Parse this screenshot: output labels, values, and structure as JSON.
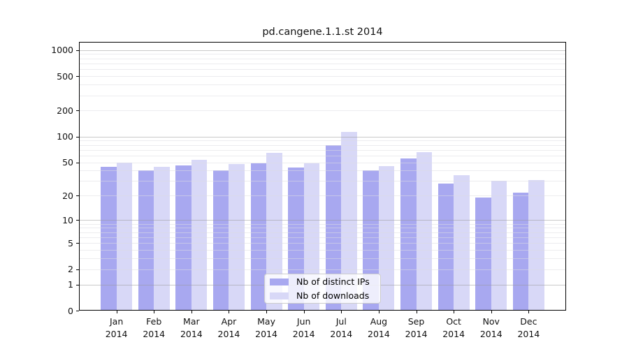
{
  "chart_data": {
    "type": "bar",
    "title": "pd.cangene.1.1.st 2014",
    "categories": [
      "Jan 2014",
      "Feb 2014",
      "Mar 2014",
      "Apr 2014",
      "May 2014",
      "Jun 2014",
      "Jul 2014",
      "Aug 2014",
      "Sep 2014",
      "Oct 2014",
      "Nov 2014",
      "Dec 2014"
    ],
    "series": [
      {
        "name": "Nb of distinct IPs",
        "color": "#a8a8f0",
        "values": [
          44,
          40,
          46,
          40,
          49,
          43,
          79,
          40,
          55,
          28,
          19,
          22
        ]
      },
      {
        "name": "Nb of downloads",
        "color": "#d8d8f7",
        "values": [
          50,
          44,
          53,
          48,
          65,
          49,
          113,
          45,
          66,
          35,
          30,
          31
        ]
      }
    ],
    "yscale": "log1p",
    "ylim": [
      0,
      1240
    ],
    "yticks": [
      0,
      1,
      2,
      5,
      10,
      20,
      50,
      100,
      200,
      500,
      1000
    ],
    "grid_major": [
      1,
      10,
      100,
      1000
    ],
    "grid_minor_multiples_per_decade": [
      2,
      3,
      4,
      5,
      6,
      7,
      8,
      9
    ],
    "grid": "on",
    "legend_position": "lower center",
    "xlabel": "",
    "ylabel": ""
  },
  "legend": {
    "items": [
      {
        "label": "Nb of distinct IPs",
        "color": "#a8a8f0"
      },
      {
        "label": "Nb of downloads",
        "color": "#d8d8f7"
      }
    ]
  }
}
